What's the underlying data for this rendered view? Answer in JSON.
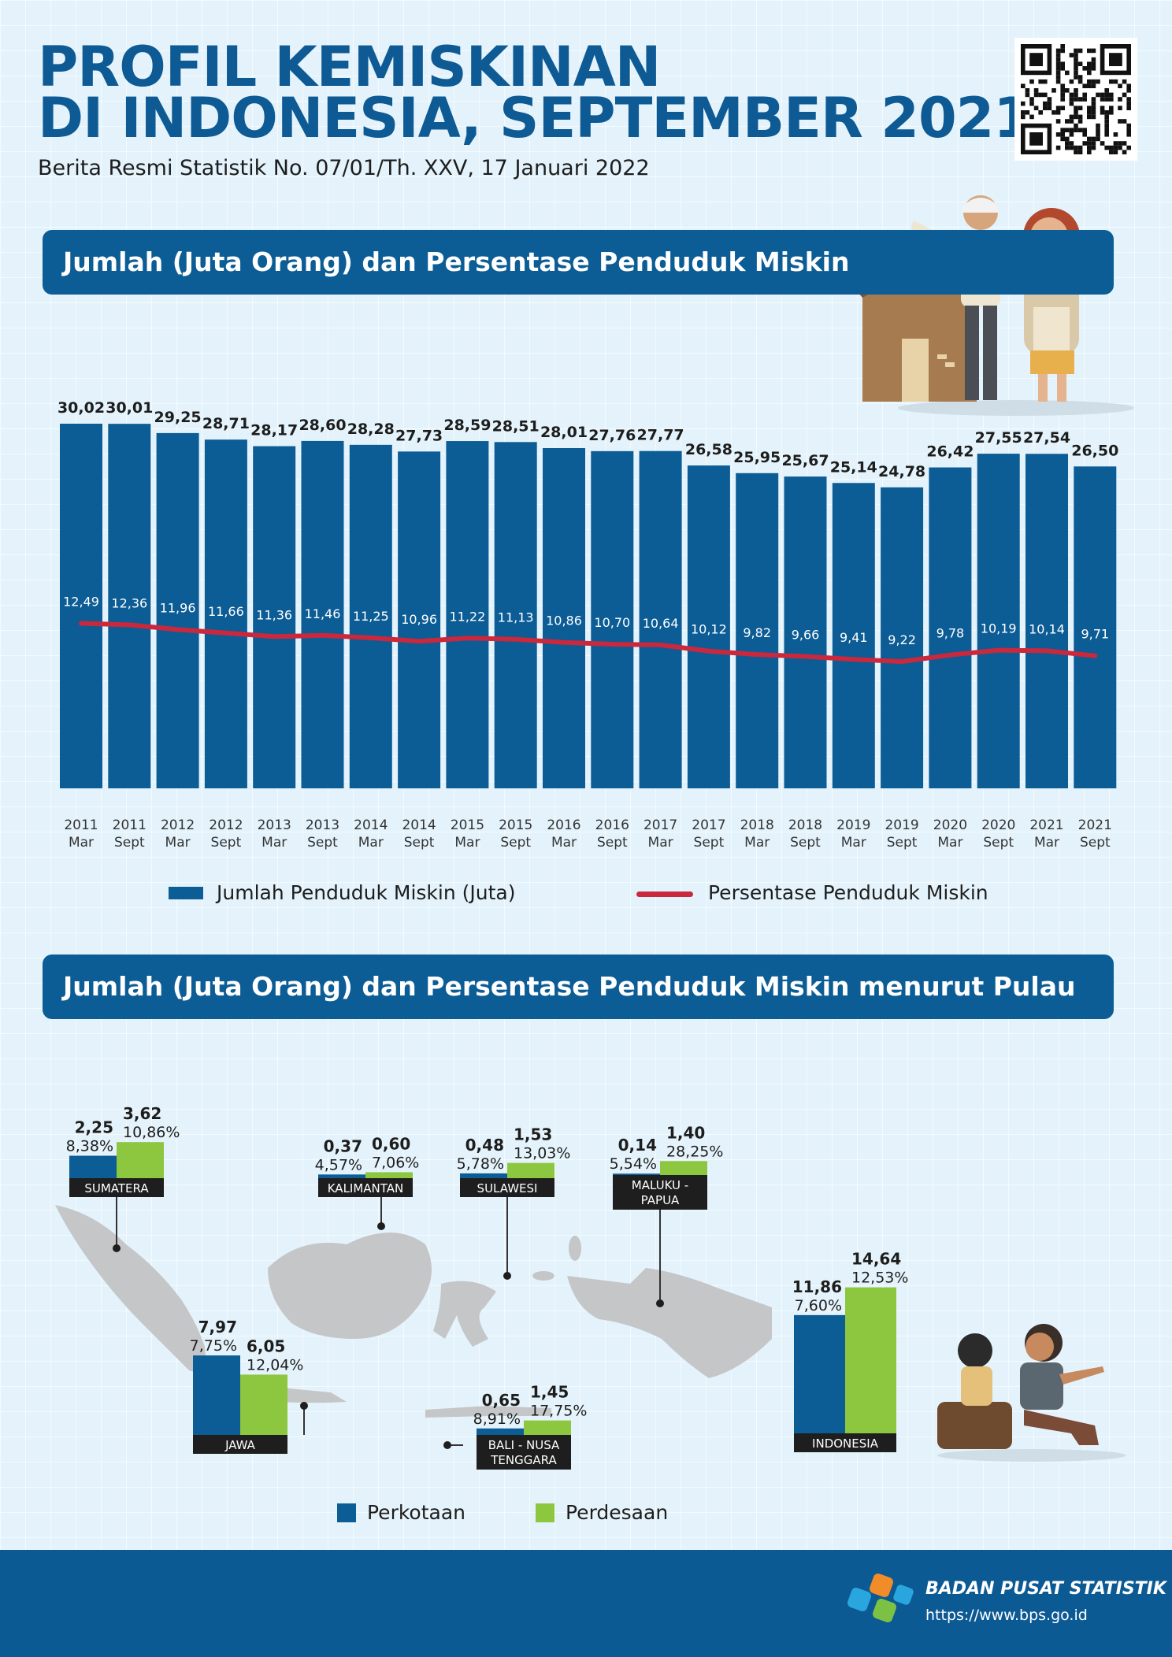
{
  "header": {
    "title_line1": "PROFIL KEMISKINAN",
    "title_line2": "DI INDONESIA, SEPTEMBER 2021",
    "subtitle": "Berita Resmi Statistik No. 07/01/Th. XXV, 17 Januari 2022"
  },
  "section1": {
    "title": "Jumlah (Juta Orang) dan Persentase Penduduk Miskin",
    "legend_bar": "Jumlah Penduduk Miskin (Juta)",
    "legend_line": "Persentase Penduduk Miskin"
  },
  "section2": {
    "title": "Jumlah (Juta Orang) dan Persentase Penduduk Miskin menurut Pulau",
    "legend_urban": "Perkotaan",
    "legend_rural": "Perdesaan"
  },
  "footer": {
    "org_name": "BADAN PUSAT STATISTIK",
    "url": "https://www.bps.go.id"
  },
  "colors": {
    "primary": "#0c5c95",
    "rural_green": "#8dc63f",
    "line_red": "#c9283d",
    "map_grey": "#c5c6c8"
  },
  "chart_data": [
    {
      "type": "bar",
      "categories": [
        "2011 Mar",
        "2011 Sept",
        "2012 Mar",
        "2012 Sept",
        "2013 Mar",
        "2013 Sept",
        "2014 Mar",
        "2014 Sept",
        "2015 Mar",
        "2015 Sept",
        "2016 Mar",
        "2016 Sept",
        "2017 Mar",
        "2017 Sept",
        "2018 Mar",
        "2018 Sept",
        "2019 Mar",
        "2019 Sept",
        "2020 Mar",
        "2020 Sept",
        "2021 Mar",
        "2021 Sept"
      ],
      "period_year": [
        "2011",
        "2011",
        "2012",
        "2012",
        "2013",
        "2013",
        "2014",
        "2014",
        "2015",
        "2015",
        "2016",
        "2016",
        "2017",
        "2017",
        "2018",
        "2018",
        "2019",
        "2019",
        "2020",
        "2020",
        "2021",
        "2021"
      ],
      "period_month": [
        "Mar",
        "Sept",
        "Mar",
        "Sept",
        "Mar",
        "Sept",
        "Mar",
        "Sept",
        "Mar",
        "Sept",
        "Mar",
        "Sept",
        "Mar",
        "Sept",
        "Mar",
        "Sept",
        "Mar",
        "Sept",
        "Mar",
        "Sept",
        "Mar",
        "Sept"
      ],
      "series": [
        {
          "name": "Jumlah Penduduk Miskin (Juta)",
          "kind": "bar",
          "values": [
            30.02,
            30.01,
            29.25,
            28.71,
            28.17,
            28.6,
            28.28,
            27.73,
            28.59,
            28.51,
            28.01,
            27.76,
            27.77,
            26.58,
            25.95,
            25.67,
            25.14,
            24.78,
            26.42,
            27.55,
            27.54,
            26.5
          ],
          "labels": [
            "30,02",
            "30,01",
            "29,25",
            "28,71",
            "28,17",
            "28,60",
            "28,28",
            "27,73",
            "28,59",
            "28,51",
            "28,01",
            "27,76",
            "27,77",
            "26,58",
            "25,95",
            "25,67",
            "25,14",
            "24,78",
            "26,42",
            "27,55",
            "27,54",
            "26,50"
          ]
        },
        {
          "name": "Persentase Penduduk Miskin",
          "kind": "line",
          "values": [
            12.49,
            12.36,
            11.96,
            11.66,
            11.36,
            11.46,
            11.25,
            10.96,
            11.22,
            11.13,
            10.86,
            10.7,
            10.64,
            10.12,
            9.82,
            9.66,
            9.41,
            9.22,
            9.78,
            10.19,
            10.14,
            9.71
          ],
          "labels": [
            "12,49",
            "12,36",
            "11,96",
            "11,66",
            "11,36",
            "11,46",
            "11,25",
            "10,96",
            "11,22",
            "11,13",
            "10,86",
            "10,70",
            "10,64",
            "10,12",
            "9,82",
            "9,66",
            "9,41",
            "9,22",
            "9,78",
            "10,19",
            "10,14",
            "9,71"
          ]
        }
      ],
      "legend": "bottom",
      "grid": false
    },
    {
      "type": "bar",
      "categories": [
        "SUMATERA",
        "KALIMANTAN",
        "SULAWESI",
        "MALUKU - PAPUA",
        "JAWA",
        "BALI - NUSA TENGGARA",
        "INDONESIA"
      ],
      "category_lines": [
        [
          "SUMATERA"
        ],
        [
          "KALIMANTAN"
        ],
        [
          "SULAWESI"
        ],
        [
          "MALUKU -",
          "PAPUA"
        ],
        [
          "JAWA"
        ],
        [
          "BALI - NUSA",
          "TENGGARA"
        ],
        [
          "INDONESIA"
        ]
      ],
      "series": [
        {
          "name": "Perkotaan",
          "values": [
            2.25,
            0.37,
            0.48,
            0.14,
            7.97,
            0.65,
            11.86
          ],
          "labels": [
            "2,25",
            "0,37",
            "0,48",
            "0,14",
            "7,97",
            "0,65",
            "11,86"
          ],
          "pct_labels": [
            "8,38%",
            "4,57%",
            "5,78%",
            "5,54%",
            "7,75%",
            "8,91%",
            "7,60%"
          ]
        },
        {
          "name": "Perdesaan",
          "values": [
            3.62,
            0.6,
            1.53,
            1.4,
            6.05,
            1.45,
            14.64
          ],
          "labels": [
            "3,62",
            "0,60",
            "1,53",
            "1,40",
            "6,05",
            "1,45",
            "14,64"
          ],
          "pct_labels": [
            "10,86%",
            "7,06%",
            "13,03%",
            "28,25%",
            "12,04%",
            "17,75%",
            "12,53%"
          ]
        }
      ],
      "legend": "bottom"
    }
  ]
}
